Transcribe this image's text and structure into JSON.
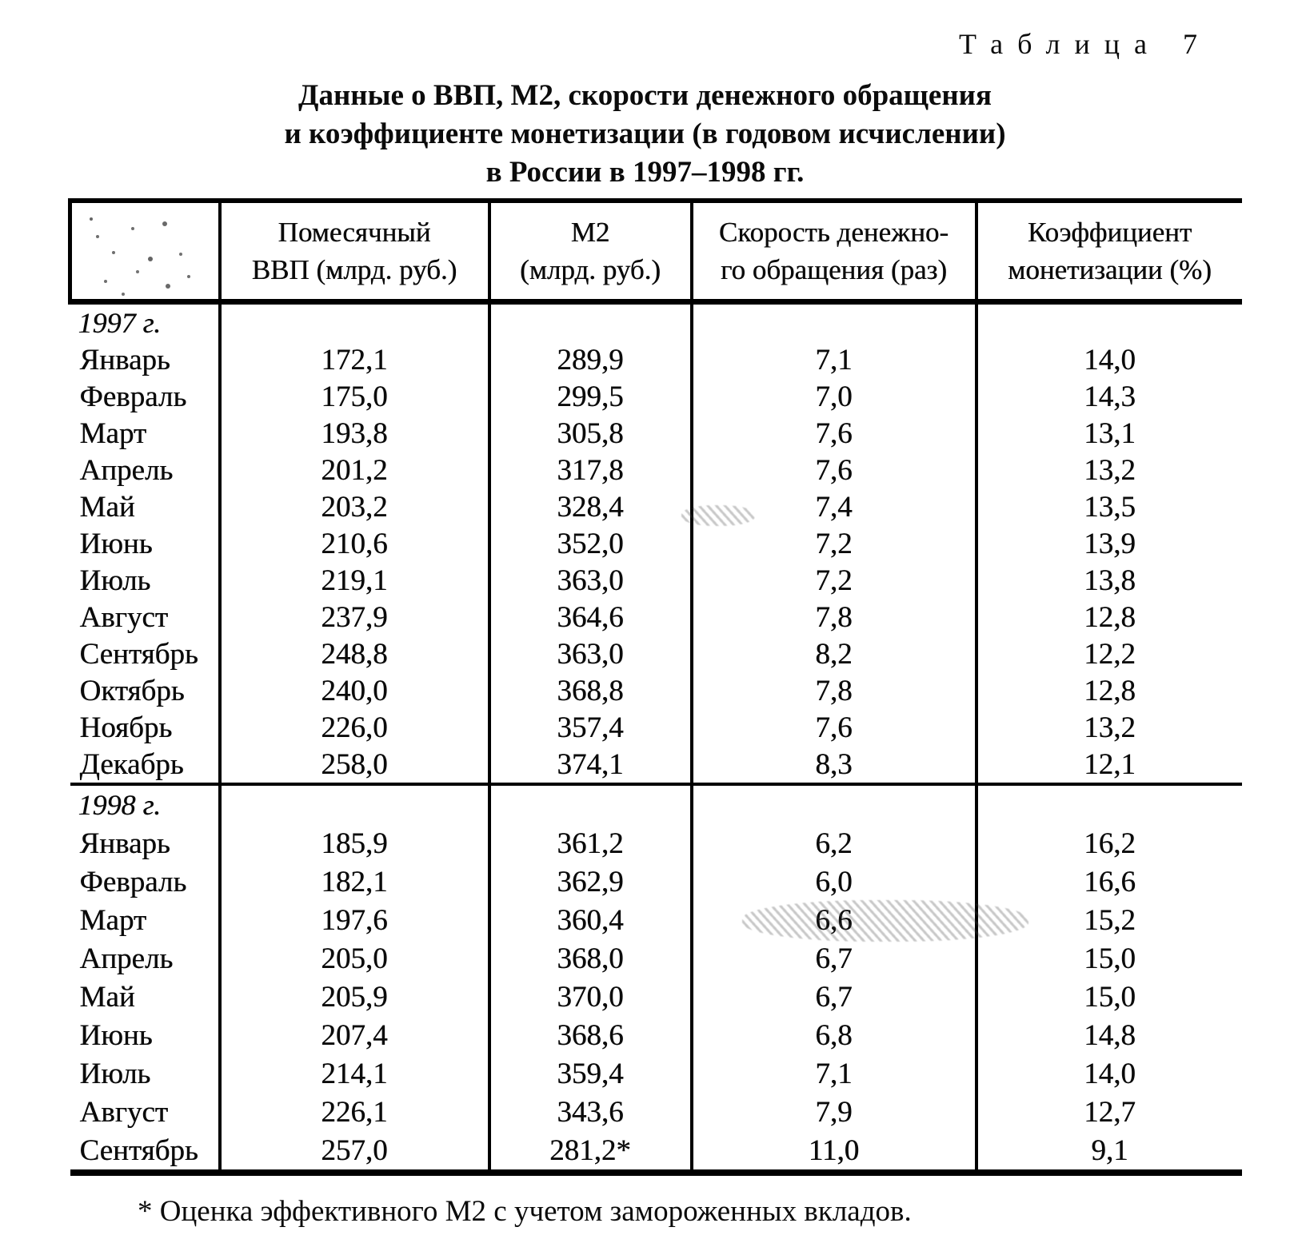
{
  "page": {
    "table_label": "Таблица 7",
    "title": "Данные о ВВП, М2, скорости денежного обращения\nи коэффициенте монетизации (в годовом исчислении)\nв России в 1997–1998 гг.",
    "footnote": "* Оценка эффективного М2 с учетом замороженных вкладов."
  },
  "table": {
    "columns": [
      "",
      "Помесячный\nВВП (млрд. руб.)",
      "М2\n(млрд. руб.)",
      "Скорость денежно-\nго обращения (раз)",
      "Коэффициент\nмонетизации (%)"
    ],
    "sections": [
      {
        "year_label": "1997 г.",
        "rows": [
          [
            "Январь",
            "172,1",
            "289,9",
            "7,1",
            "14,0"
          ],
          [
            "Февраль",
            "175,0",
            "299,5",
            "7,0",
            "14,3"
          ],
          [
            "Март",
            "193,8",
            "305,8",
            "7,6",
            "13,1"
          ],
          [
            "Апрель",
            "201,2",
            "317,8",
            "7,6",
            "13,2"
          ],
          [
            "Май",
            "203,2",
            "328,4",
            "7,4",
            "13,5"
          ],
          [
            "Июнь",
            "210,6",
            "352,0",
            "7,2",
            "13,9"
          ],
          [
            "Июль",
            "219,1",
            "363,0",
            "7,2",
            "13,8"
          ],
          [
            "Август",
            "237,9",
            "364,6",
            "7,8",
            "12,8"
          ],
          [
            "Сентябрь",
            "248,8",
            "363,0",
            "8,2",
            "12,2"
          ],
          [
            "Октябрь",
            "240,0",
            "368,8",
            "7,8",
            "12,8"
          ],
          [
            "Ноябрь",
            "226,0",
            "357,4",
            "7,6",
            "13,2"
          ],
          [
            "Декабрь",
            "258,0",
            "374,1",
            "8,3",
            "12,1"
          ]
        ]
      },
      {
        "year_label": "1998 г.",
        "rows": [
          [
            "Январь",
            "185,9",
            "361,2",
            "6,2",
            "16,2"
          ],
          [
            "Февраль",
            "182,1",
            "362,9",
            "6,0",
            "16,6"
          ],
          [
            "Март",
            "197,6",
            "360,4",
            "6,6",
            "15,2"
          ],
          [
            "Апрель",
            "205,0",
            "368,0",
            "6,7",
            "15,0"
          ],
          [
            "Май",
            "205,9",
            "370,0",
            "6,7",
            "15,0"
          ],
          [
            "Июнь",
            "207,4",
            "368,6",
            "6,8",
            "14,8"
          ],
          [
            "Июль",
            "214,1",
            "359,4",
            "7,1",
            "14,0"
          ],
          [
            "Август",
            "226,1",
            "343,6",
            "7,9",
            "12,7"
          ],
          [
            "Сентябрь",
            "257,0",
            "281,2*",
            "11,0",
            "9,1"
          ]
        ]
      }
    ]
  }
}
